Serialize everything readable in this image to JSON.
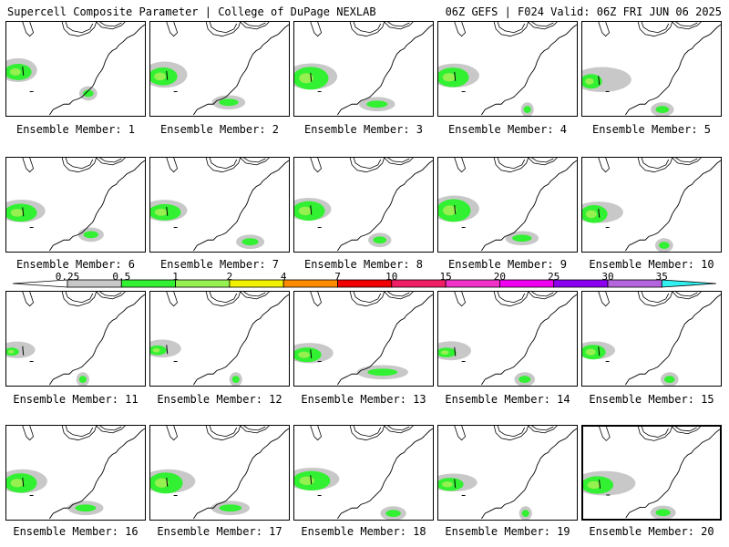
{
  "header": {
    "title_left": "Supercell Composite Parameter | College of DuPage NEXLAB",
    "title_right": "06Z GEFS | F024 Valid: 06Z FRI JUN 06 2025"
  },
  "colorbar": {
    "ticks": [
      "0.25",
      "0.5",
      "1",
      "2",
      "4",
      "7",
      "10",
      "15",
      "20",
      "25",
      "30",
      "35"
    ],
    "colors": [
      "#c8c8c8",
      "#32f032",
      "#96f050",
      "#f0f000",
      "#ff8c00",
      "#f00000",
      "#f01e64",
      "#f032c8",
      "#f000f0",
      "#8c00f0",
      "#b464dc",
      "#32f0f0"
    ]
  },
  "members": [
    {
      "label": "Ensemble Member: 1"
    },
    {
      "label": "Ensemble Member: 2"
    },
    {
      "label": "Ensemble Member: 3"
    },
    {
      "label": "Ensemble Member: 4"
    },
    {
      "label": "Ensemble Member: 5"
    },
    {
      "label": "Ensemble Member: 6"
    },
    {
      "label": "Ensemble Member: 7"
    },
    {
      "label": "Ensemble Member: 8"
    },
    {
      "label": "Ensemble Member: 9"
    },
    {
      "label": "Ensemble Member: 10"
    },
    {
      "label": "Ensemble Member: 11"
    },
    {
      "label": "Ensemble Member: 12"
    },
    {
      "label": "Ensemble Member: 13"
    },
    {
      "label": "Ensemble Member: 14"
    },
    {
      "label": "Ensemble Member: 15"
    },
    {
      "label": "Ensemble Member: 16"
    },
    {
      "label": "Ensemble Member: 17"
    },
    {
      "label": "Ensemble Member: 18"
    },
    {
      "label": "Ensemble Member: 19"
    },
    {
      "label": "Ensemble Member: 20"
    }
  ]
}
